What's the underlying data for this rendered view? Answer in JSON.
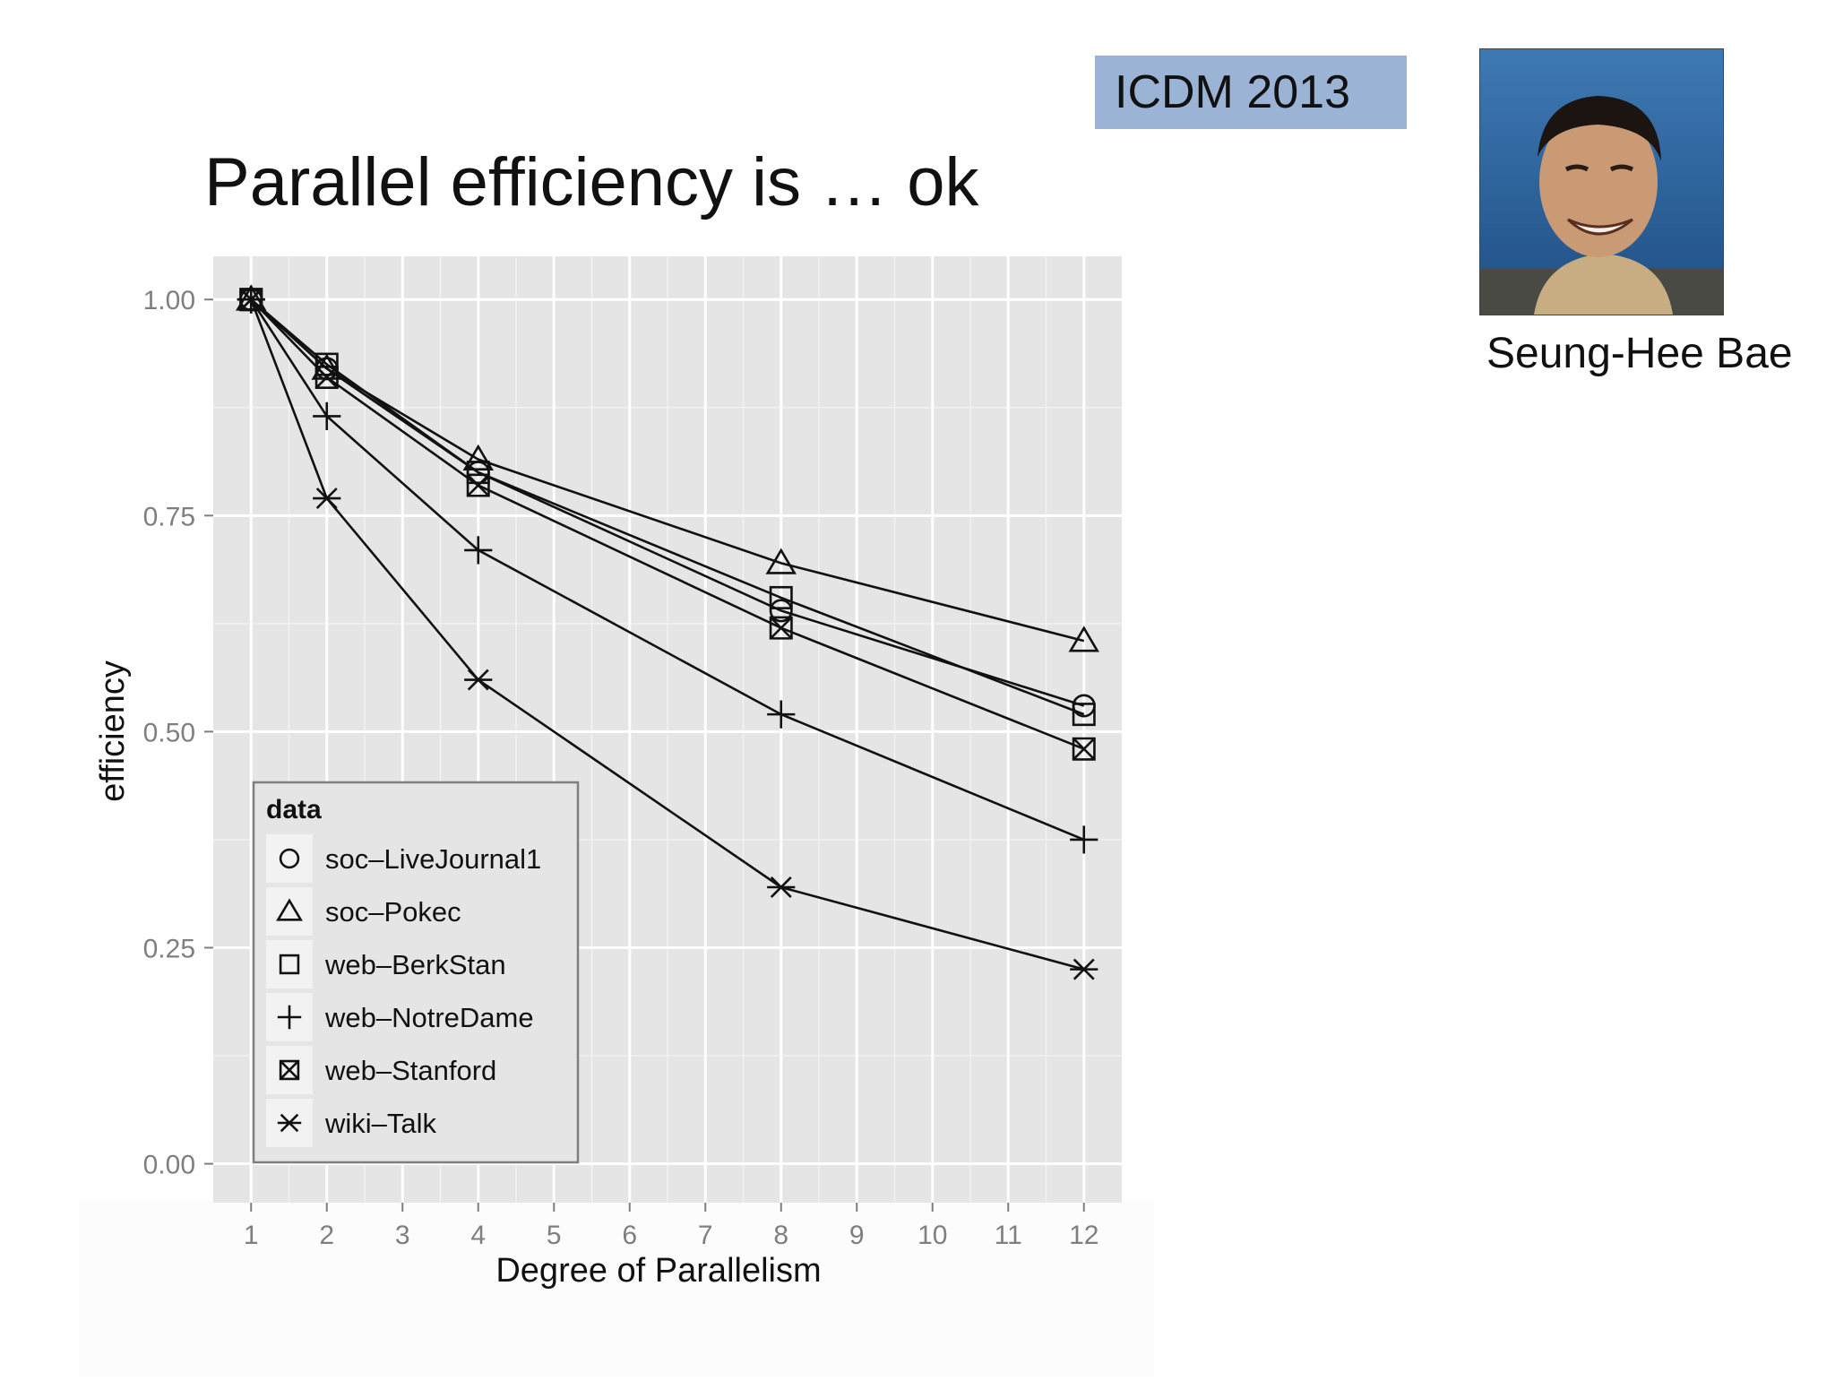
{
  "slide": {
    "title": "Parallel efficiency is … ok",
    "conference": "ICDM 2013",
    "person_name": "Seung-Hee Bae",
    "photo_alt": "portrait photo"
  },
  "chart_data": {
    "type": "line",
    "title": "",
    "xlabel": "Degree of Parallelism",
    "ylabel": "efficiency",
    "x": [
      1,
      2,
      4,
      8,
      12
    ],
    "xlim": [
      0.5,
      12.5
    ],
    "ylim": [
      -0.045,
      1.05
    ],
    "x_ticks": [
      1,
      2,
      3,
      4,
      5,
      6,
      7,
      8,
      9,
      10,
      11,
      12
    ],
    "x_tick_labels": [
      "1",
      "2",
      "3",
      "4",
      "5",
      "6",
      "7",
      "8",
      "9",
      "10",
      "11",
      "12"
    ],
    "y_ticks": [
      0,
      0.25,
      0.5,
      0.75,
      1.0
    ],
    "y_tick_labels": [
      "0.00",
      "0.25",
      "0.50",
      "0.75",
      "1.00"
    ],
    "grid": true,
    "legend": {
      "title": "data",
      "placement": "bottom-left"
    },
    "series": [
      {
        "name": "soc–LiveJournal1",
        "marker": "circle",
        "values": [
          1.0,
          0.92,
          0.8,
          0.64,
          0.53
        ]
      },
      {
        "name": "soc–Pokec",
        "marker": "triangle",
        "values": [
          1.0,
          0.92,
          0.815,
          0.695,
          0.605
        ]
      },
      {
        "name": "web–BerkStan",
        "marker": "square",
        "values": [
          1.0,
          0.925,
          0.8,
          0.655,
          0.52
        ]
      },
      {
        "name": "web–NotreDame",
        "marker": "plus",
        "values": [
          1.0,
          0.865,
          0.71,
          0.52,
          0.375
        ]
      },
      {
        "name": "web–Stanford",
        "marker": "square-x",
        "values": [
          1.0,
          0.91,
          0.785,
          0.62,
          0.48
        ]
      },
      {
        "name": "wiki–Talk",
        "marker": "asterisk",
        "values": [
          1.0,
          0.77,
          0.56,
          0.32,
          0.225
        ]
      }
    ]
  }
}
